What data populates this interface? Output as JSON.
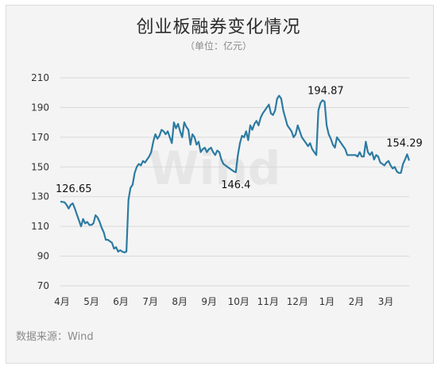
{
  "chart_data": {
    "type": "line",
    "title": "创业板融券变化情况",
    "subtitle": "（单位：亿元）",
    "source": "数据来源：Wind",
    "watermark": "Wind",
    "ylim": [
      70,
      210
    ],
    "yticks": [
      70,
      90,
      110,
      130,
      150,
      170,
      190,
      210
    ],
    "grid": true,
    "x_labels": [
      "4月",
      "5月",
      "6月",
      "7月",
      "8月",
      "9月",
      "10月",
      "11月",
      "12月",
      "1月",
      "2月",
      "3月"
    ],
    "line_color": "#2d7ba2",
    "series": [
      {
        "values": [
          126.65,
          126.5,
          126.2,
          124.5,
          122,
          124.5,
          125.5,
          122,
          118,
          114,
          110,
          115,
          112,
          113,
          111,
          111,
          112,
          117.5,
          116,
          113,
          109,
          106,
          101,
          101,
          100,
          99,
          95,
          96,
          93,
          94,
          93,
          92.5,
          93,
          128,
          136,
          138,
          146,
          150,
          152,
          151,
          154,
          153,
          155,
          157,
          160,
          167,
          172,
          169,
          171,
          175,
          174,
          172,
          174,
          170,
          166,
          180,
          176,
          179,
          174,
          170,
          180,
          177,
          175,
          165,
          172,
          170,
          165,
          167,
          160,
          162,
          163,
          160,
          162,
          163,
          160,
          158,
          161,
          160,
          155,
          152,
          151,
          150,
          149,
          148,
          147,
          146.4,
          158,
          166,
          171,
          170,
          174,
          168,
          178,
          175,
          179,
          181,
          178,
          183,
          186,
          188,
          190,
          192,
          186,
          185,
          188,
          196,
          198,
          196,
          188,
          183,
          178,
          176,
          174,
          170,
          172,
          178,
          174,
          170,
          168,
          166,
          164,
          166,
          162,
          160,
          158,
          188,
          193,
          194.87,
          194,
          178,
          172,
          169,
          165,
          163,
          170,
          168,
          166,
          164,
          162,
          158,
          158,
          158,
          158,
          158,
          157,
          160,
          157,
          157,
          167,
          160,
          158,
          160,
          155,
          158,
          157,
          153,
          152,
          151,
          153,
          154,
          151,
          149,
          150,
          147,
          146,
          146,
          152,
          155,
          158.5,
          154.29
        ]
      }
    ],
    "annotations": [
      {
        "text": "126.65",
        "value": 126.65
      },
      {
        "text": "146.4",
        "value": 146.4
      },
      {
        "text": "194.87",
        "value": 194.87
      },
      {
        "text": "154.29",
        "value": 154.29
      }
    ]
  }
}
